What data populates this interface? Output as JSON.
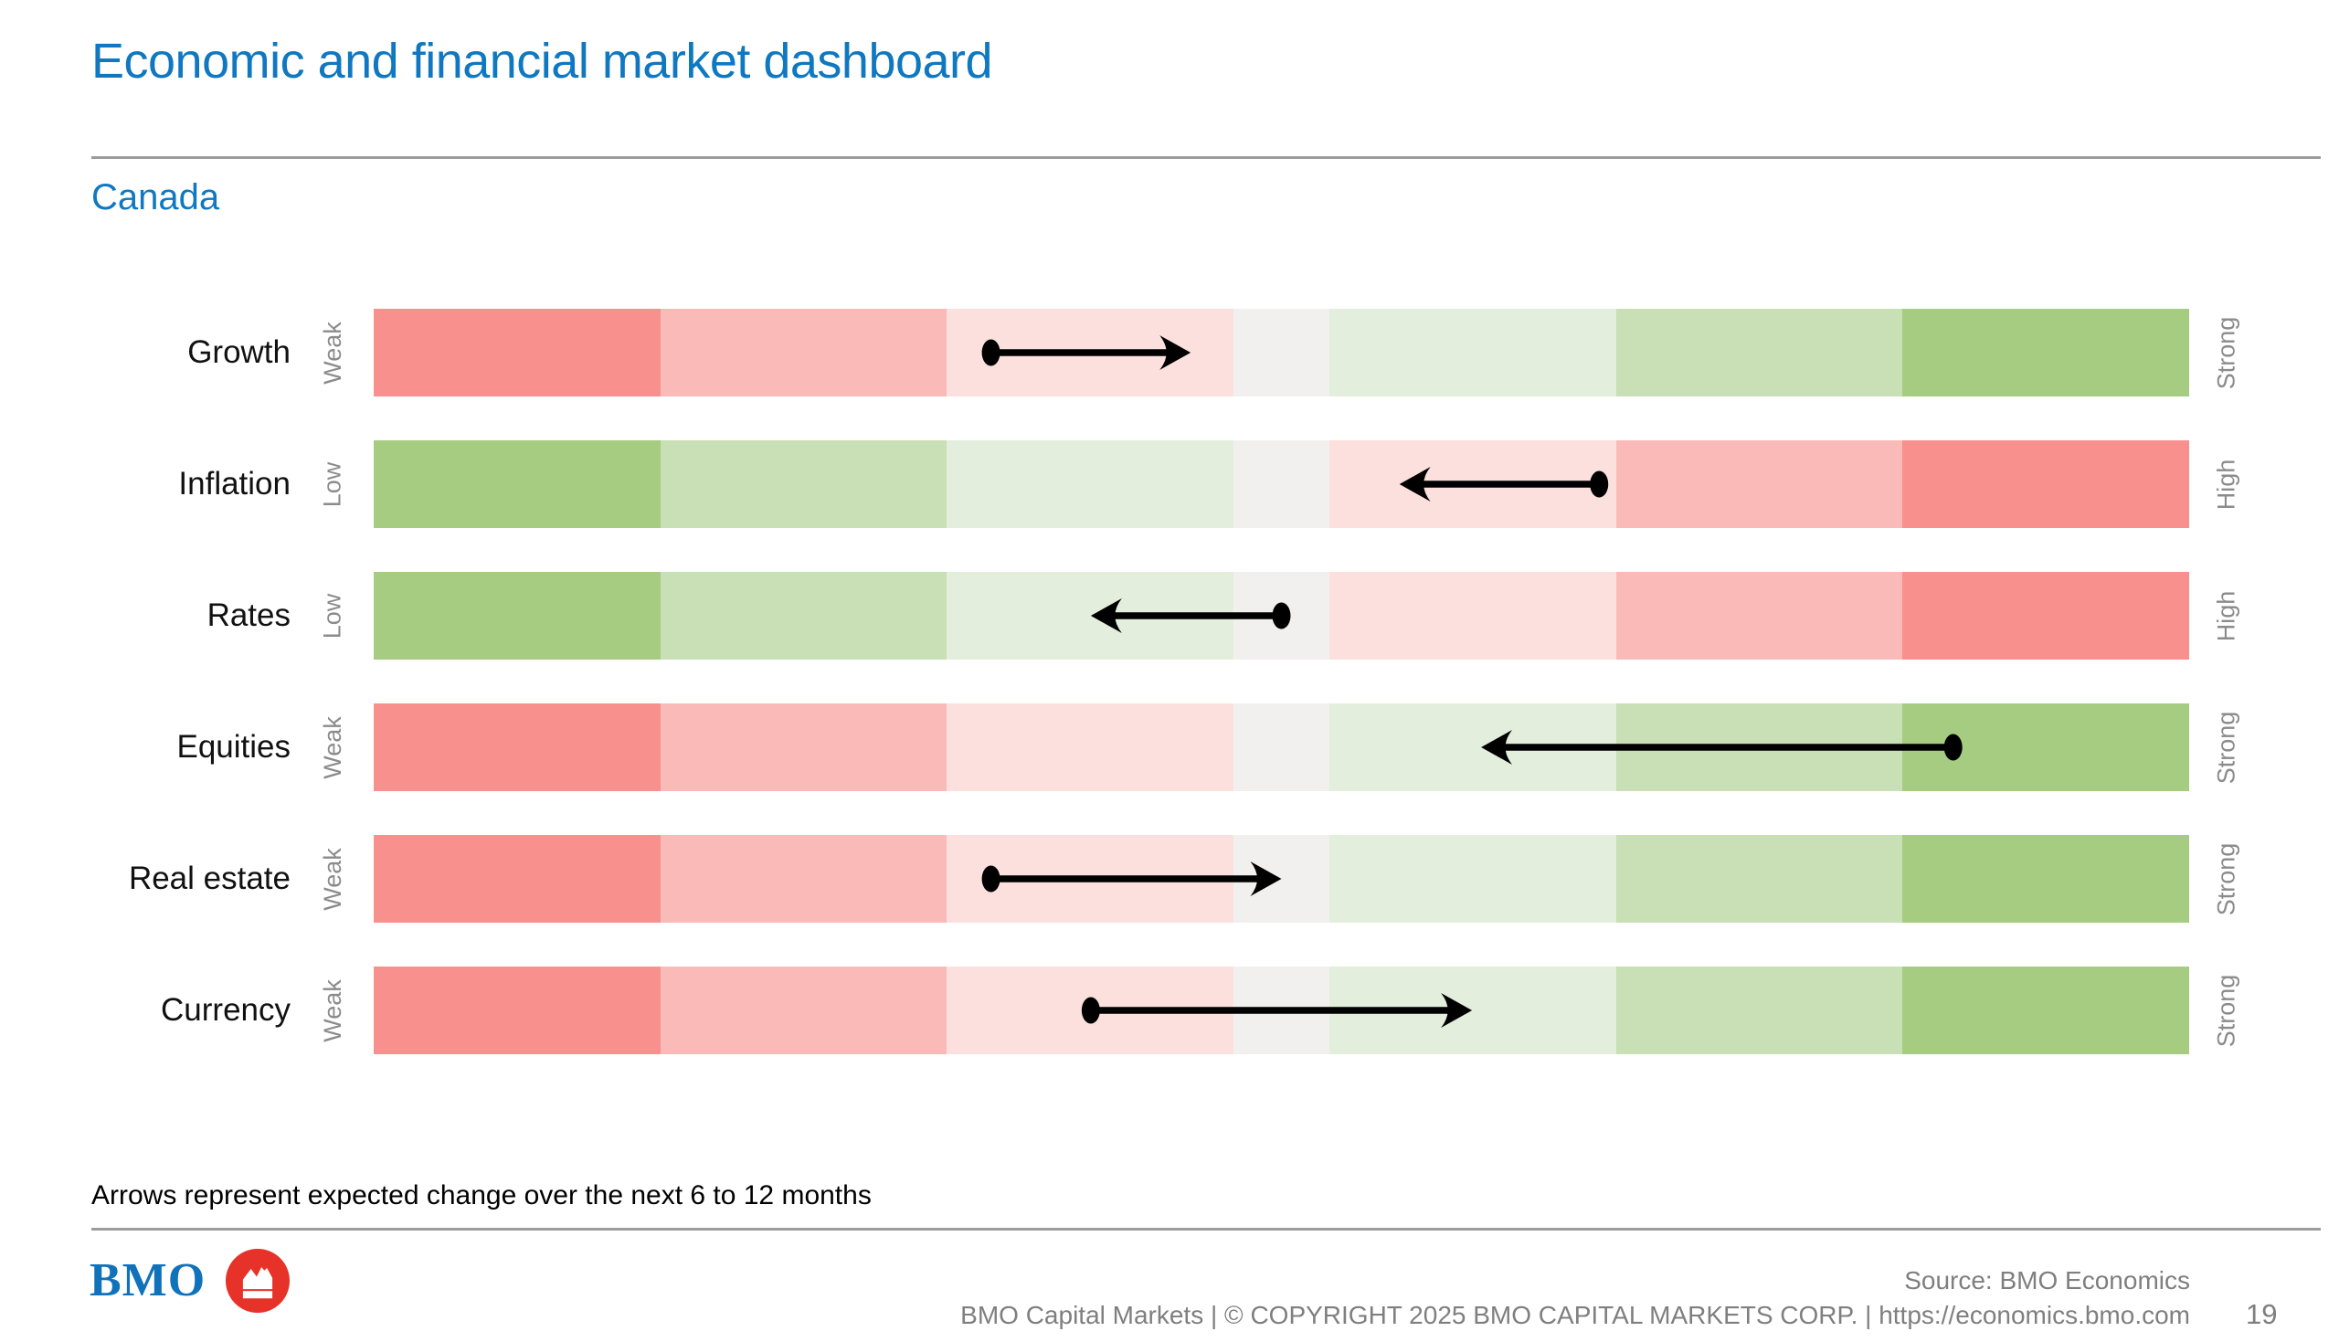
{
  "page": {
    "title": "Economic and financial market dashboard",
    "subtitle": "Canada",
    "note": "Arrows represent expected change over the next 6 to 12 months",
    "page_number": "19"
  },
  "footer": {
    "wordmark": "BMO",
    "roundel_icon": "bmo-m-bar-roundel",
    "source": "Source: BMO Economics",
    "copyright": "BMO Capital Markets | © COPYRIGHT 2025 BMO CAPITAL MARKETS CORP. | https://economics.bmo.com"
  },
  "colors": {
    "accent_blue": "#0F78C1",
    "wordmark_blue": "#1072BA",
    "roundel_red": "#E63228",
    "footer_gray": "#7F7F7F",
    "scale_gray": "#8B8B8B",
    "rule_gray": "#9C9C9C",
    "negative_strong": "#F8908D",
    "negative_mid": "#FABBB8",
    "negative_light": "#FCE0DE",
    "neutral": "#F1F0EF",
    "positive_light": "#E4EEDC",
    "positive_mid": "#C9DFB5",
    "positive_strong": "#A5CC80",
    "arrow_black": "#000000"
  },
  "chart_data": {
    "type": "heatmap",
    "title": "Canada",
    "note": "Arrows represent expected change over the next 6 to 12 months",
    "legend_position": "none",
    "grid": false,
    "segment_weights": [
      3,
      3,
      3,
      1,
      3,
      3,
      3
    ],
    "rows": [
      {
        "label": "Growth",
        "left_label": "Weak",
        "right_label": "Strong",
        "palette": "red_to_green",
        "arrow_start_pct": 34.0,
        "arrow_end_pct": 45.0,
        "expected_change": "improving"
      },
      {
        "label": "Inflation",
        "left_label": "Low",
        "right_label": "High",
        "palette": "green_to_red",
        "arrow_start_pct": 67.5,
        "arrow_end_pct": 56.5,
        "expected_change": "falling"
      },
      {
        "label": "Rates",
        "left_label": "Low",
        "right_label": "High",
        "palette": "green_to_red",
        "arrow_start_pct": 50.0,
        "arrow_end_pct": 39.5,
        "expected_change": "falling"
      },
      {
        "label": "Equities",
        "left_label": "Weak",
        "right_label": "Strong",
        "palette": "red_to_green",
        "arrow_start_pct": 87.0,
        "arrow_end_pct": 61.0,
        "expected_change": "weakening"
      },
      {
        "label": "Real estate",
        "left_label": "Weak",
        "right_label": "Strong",
        "palette": "red_to_green",
        "arrow_start_pct": 34.0,
        "arrow_end_pct": 50.0,
        "expected_change": "improving"
      },
      {
        "label": "Currency",
        "left_label": "Weak",
        "right_label": "Strong",
        "palette": "red_to_green",
        "arrow_start_pct": 39.5,
        "arrow_end_pct": 60.5,
        "expected_change": "strengthening"
      }
    ]
  }
}
